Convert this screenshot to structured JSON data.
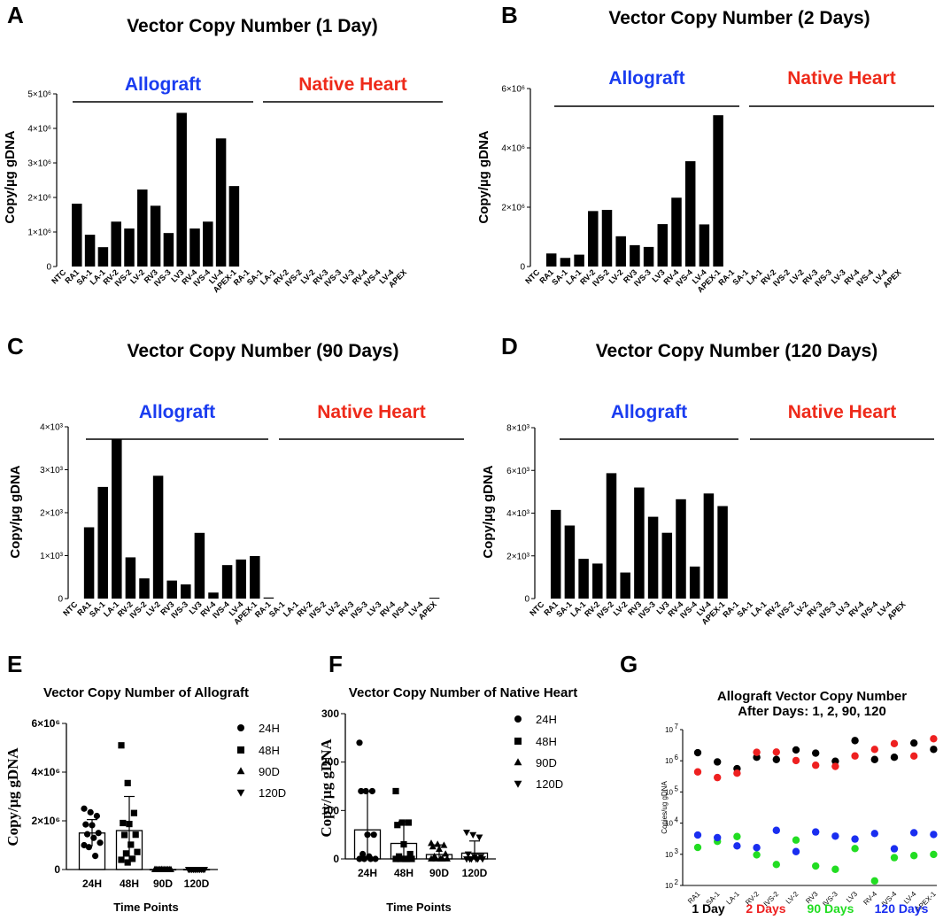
{
  "chart_data": [
    {
      "panel": "A",
      "type": "bar",
      "title": "Vector Copy Number (1 Day)",
      "ylabel": "Copy/µg gDNA",
      "ylim": [
        0,
        5000000
      ],
      "yticks": [
        0,
        1000000,
        2000000,
        3000000,
        4000000,
        5000000
      ],
      "ytick_labels": [
        "0",
        "1×10⁶",
        "2×10⁶",
        "3×10⁶",
        "4×10⁶",
        "5×10⁶"
      ],
      "groups": [
        {
          "label": "Allograft",
          "color": "#1a3cf0",
          "from": 1,
          "to": 15
        },
        {
          "label": "Native Heart",
          "color": "#ee2a1a",
          "from": 16,
          "to": 30
        }
      ],
      "categories": [
        "NTC",
        "RA1",
        "SA-1",
        "LA-1",
        "RV-2",
        "IVS-2",
        "LV-2",
        "RV3",
        "IVS-3",
        "LV3",
        "RV-4",
        "IVS-4",
        "LV-4",
        "APEX-1",
        "RA-1",
        "SA-1",
        "LA-1",
        "RV-2",
        "IVS-2",
        "LV-2",
        "RV-3",
        "IVS-3",
        "LV-3",
        "RV-4",
        "IVS-4",
        "LV-4",
        "APEX"
      ],
      "values": [
        0,
        1820000,
        920000,
        560000,
        1300000,
        1100000,
        2230000,
        1760000,
        970000,
        4450000,
        1100000,
        1300000,
        3710000,
        2330000,
        0,
        0,
        0,
        0,
        0,
        0,
        0,
        0,
        0,
        0,
        0,
        0,
        0
      ]
    },
    {
      "panel": "B",
      "type": "bar",
      "title": "Vector Copy Number (2 Days)",
      "ylabel": "Copy/µg gDNA",
      "ylim": [
        0,
        6000000
      ],
      "yticks": [
        0,
        2000000,
        4000000,
        6000000
      ],
      "ytick_labels": [
        "0",
        "2×10⁶",
        "4×10⁶",
        "6×10⁶"
      ],
      "groups": [
        {
          "label": "Allograft",
          "color": "#1a3cf0"
        },
        {
          "label": "Native Heart",
          "color": "#ee2a1a"
        }
      ],
      "categories": [
        "NTC",
        "RA1",
        "SA-1",
        "LA-1",
        "RV-2",
        "IVS-2",
        "LV-2",
        "RV3",
        "IVS-3",
        "LV3",
        "RV-4",
        "IVS-4",
        "LV-4",
        "APEX-1",
        "RA-1",
        "SA-1",
        "LA-1",
        "RV-2",
        "IVS-2",
        "LV-2",
        "RV-3",
        "IVS-3",
        "LV-3",
        "RV-4",
        "IVS-4",
        "LV-4",
        "APEX"
      ],
      "values": [
        0,
        440000,
        290000,
        400000,
        1870000,
        1910000,
        1020000,
        720000,
        660000,
        1430000,
        2320000,
        3550000,
        1420000,
        5100000,
        0,
        0,
        0,
        0,
        0,
        0,
        0,
        0,
        0,
        0,
        0,
        0,
        0
      ]
    },
    {
      "panel": "C",
      "type": "bar",
      "title": "Vector Copy Number (90 Days)",
      "ylabel": "Copy/µg gDNA",
      "ylim": [
        0,
        4000
      ],
      "yticks": [
        0,
        1000,
        2000,
        3000,
        4000
      ],
      "ytick_labels": [
        "0",
        "1×10³",
        "2×10³",
        "3×10³",
        "4×10³"
      ],
      "groups": [
        {
          "label": "Allograft",
          "color": "#1a3cf0"
        },
        {
          "label": "Native Heart",
          "color": "#ee2a1a"
        }
      ],
      "categories": [
        "NTC",
        "RA1",
        "SA-1",
        "LA-1",
        "RV-2",
        "IVS-2",
        "LV-2",
        "RV3",
        "IVS-3",
        "LV3",
        "RV-4",
        "IVS-4",
        "LV-4",
        "APEX-1",
        "RA-1",
        "SA-1",
        "LA-1",
        "RV-2",
        "IVS-2",
        "LV-2",
        "RV-3",
        "IVS-3",
        "LV-3",
        "RV-4",
        "IVS-4",
        "LV-4",
        "APEX"
      ],
      "values": [
        0,
        1660,
        2600,
        3710,
        960,
        470,
        2860,
        420,
        330,
        1530,
        140,
        780,
        910,
        990,
        25,
        0,
        0,
        0,
        0,
        0,
        0,
        0,
        0,
        0,
        0,
        0,
        20
      ]
    },
    {
      "panel": "D",
      "type": "bar",
      "title": "Vector Copy Number (120 Days)",
      "ylabel": "Copy/µg gDNA",
      "ylim": [
        0,
        8000
      ],
      "yticks": [
        0,
        2000,
        4000,
        6000,
        8000
      ],
      "ytick_labels": [
        "0",
        "2×10³",
        "4×10³",
        "6×10³",
        "8×10³"
      ],
      "groups": [
        {
          "label": "Allograft",
          "color": "#1a3cf0"
        },
        {
          "label": "Native Heart",
          "color": "#ee2a1a"
        }
      ],
      "categories": [
        "NTC",
        "RA1",
        "SA-1",
        "LA-1",
        "RV-2",
        "IVS-2",
        "LV-2",
        "RV3",
        "IVS-3",
        "LV3",
        "RV-4",
        "IVS-4",
        "LV-4",
        "APEX-1",
        "RA-1",
        "SA-1",
        "LA-1",
        "RV-2",
        "IVS-2",
        "LV-2",
        "RV-3",
        "IVS-3",
        "LV-3",
        "RV-4",
        "IVS-4",
        "LV-4",
        "APEX"
      ],
      "values": [
        0,
        4150,
        3420,
        1860,
        1640,
        5870,
        1220,
        5200,
        3830,
        3080,
        4650,
        1500,
        4920,
        4330,
        0,
        0,
        0,
        0,
        0,
        0,
        0,
        0,
        0,
        0,
        0,
        0,
        0
      ]
    },
    {
      "panel": "E",
      "type": "bar",
      "title": "Vector Copy Number of Allograft",
      "ylabel": "Copy/µg gDNA",
      "xlabel": "Time Points",
      "ylim": [
        0,
        6000000
      ],
      "yticks": [
        0,
        2000000,
        4000000,
        6000000
      ],
      "ytick_labels": [
        "0",
        "2×10⁶",
        "4×10⁶",
        "6×10⁶"
      ],
      "categories": [
        "24H",
        "48H",
        "90D",
        "120D"
      ],
      "markers": [
        "circle",
        "square",
        "triangle",
        "triangle-down"
      ],
      "legend": [
        "24H",
        "48H",
        "90D",
        "120D"
      ],
      "means": [
        1500000,
        1600000,
        1500,
        3500
      ],
      "errors": [
        550000,
        1400000,
        1000,
        1300
      ],
      "points": [
        [
          2500000,
          2350000,
          2200000,
          1850000,
          1820000,
          1500000,
          1450000,
          1300000,
          1100000,
          920000,
          560000,
          1000000
        ],
        [
          5100000,
          3550000,
          2320000,
          1910000,
          1870000,
          1430000,
          1420000,
          1020000,
          720000,
          660000,
          440000,
          400000,
          290000
        ],
        [
          3710,
          2860,
          2600,
          1660,
          1530,
          990,
          960,
          910,
          780,
          470,
          420,
          330,
          140
        ],
        [
          5870,
          5200,
          4920,
          4650,
          4330,
          4150,
          3830,
          3420,
          3080,
          1860,
          1640,
          1500,
          1220
        ]
      ]
    },
    {
      "panel": "F",
      "type": "bar",
      "title": "Vector Copy Number of Native Heart",
      "ylabel": "Copy/µg gDNA",
      "xlabel": "Time Points",
      "ylim": [
        0,
        300
      ],
      "yticks": [
        0,
        100,
        200,
        300
      ],
      "ytick_labels": [
        "0",
        "100",
        "200",
        "300"
      ],
      "categories": [
        "24H",
        "48H",
        "90D",
        "120D"
      ],
      "markers": [
        "circle",
        "square",
        "triangle",
        "triangle-down"
      ],
      "legend": [
        "24H",
        "48H",
        "90D",
        "120D"
      ],
      "means": [
        60,
        32,
        9,
        12
      ],
      "errors": [
        80,
        45,
        20,
        25
      ],
      "points": [
        [
          240,
          140,
          140,
          140,
          50,
          50,
          10,
          5,
          0,
          0,
          0,
          0
        ],
        [
          140,
          75,
          75,
          70,
          30,
          10,
          5,
          0,
          0,
          0,
          0,
          0
        ],
        [
          32,
          30,
          28,
          25,
          20,
          10,
          5,
          0,
          0,
          0,
          0,
          0
        ],
        [
          55,
          50,
          45,
          10,
          5,
          5,
          0,
          0,
          0,
          0,
          0,
          0
        ]
      ]
    },
    {
      "panel": "G",
      "type": "scatter",
      "title": "Allograft Vector Copy Number",
      "subtitle": "After Days: 1, 2, 90, 120",
      "ylabel": "Copies/ug gDNA",
      "yscale": "log",
      "ylim": [
        100,
        10000000
      ],
      "yticks": [
        100,
        1000,
        10000,
        100000,
        1000000,
        10000000
      ],
      "ytick_bases": [
        "10",
        "10",
        "10",
        "10",
        "10",
        "10"
      ],
      "ytick_exps": [
        "2",
        "3",
        "4",
        "5",
        "6",
        "7"
      ],
      "categories": [
        "RA1",
        "SA-1",
        "LA-1",
        "RV-2",
        "IVS-2",
        "LV-2",
        "RV3",
        "IVS-3",
        "LV3",
        "RV-4",
        "IVS-4",
        "LV-4",
        "APEX-1"
      ],
      "series": [
        {
          "name": "1 Day",
          "color": "#000000",
          "values": [
            1820000,
            920000,
            560000,
            1300000,
            1100000,
            2230000,
            1760000,
            970000,
            4450000,
            1100000,
            1300000,
            3710000,
            2330000
          ]
        },
        {
          "name": "2 Days",
          "color": "#ee2020",
          "values": [
            440000,
            290000,
            400000,
            1870000,
            1910000,
            1020000,
            720000,
            660000,
            1430000,
            2320000,
            3550000,
            1420000,
            5100000
          ]
        },
        {
          "name": "90 Days",
          "color": "#22dd22",
          "values": [
            1660,
            2600,
            3710,
            960,
            470,
            2860,
            420,
            330,
            1530,
            140,
            780,
            910,
            990
          ]
        },
        {
          "name": "120 Days",
          "color": "#1a2ef0",
          "values": [
            4150,
            3420,
            1860,
            1640,
            5870,
            1220,
            5200,
            3830,
            3080,
            4650,
            1500,
            4920,
            4330
          ]
        }
      ]
    }
  ],
  "panel_letters": [
    "A",
    "B",
    "C",
    "D",
    "E",
    "F",
    "G"
  ]
}
